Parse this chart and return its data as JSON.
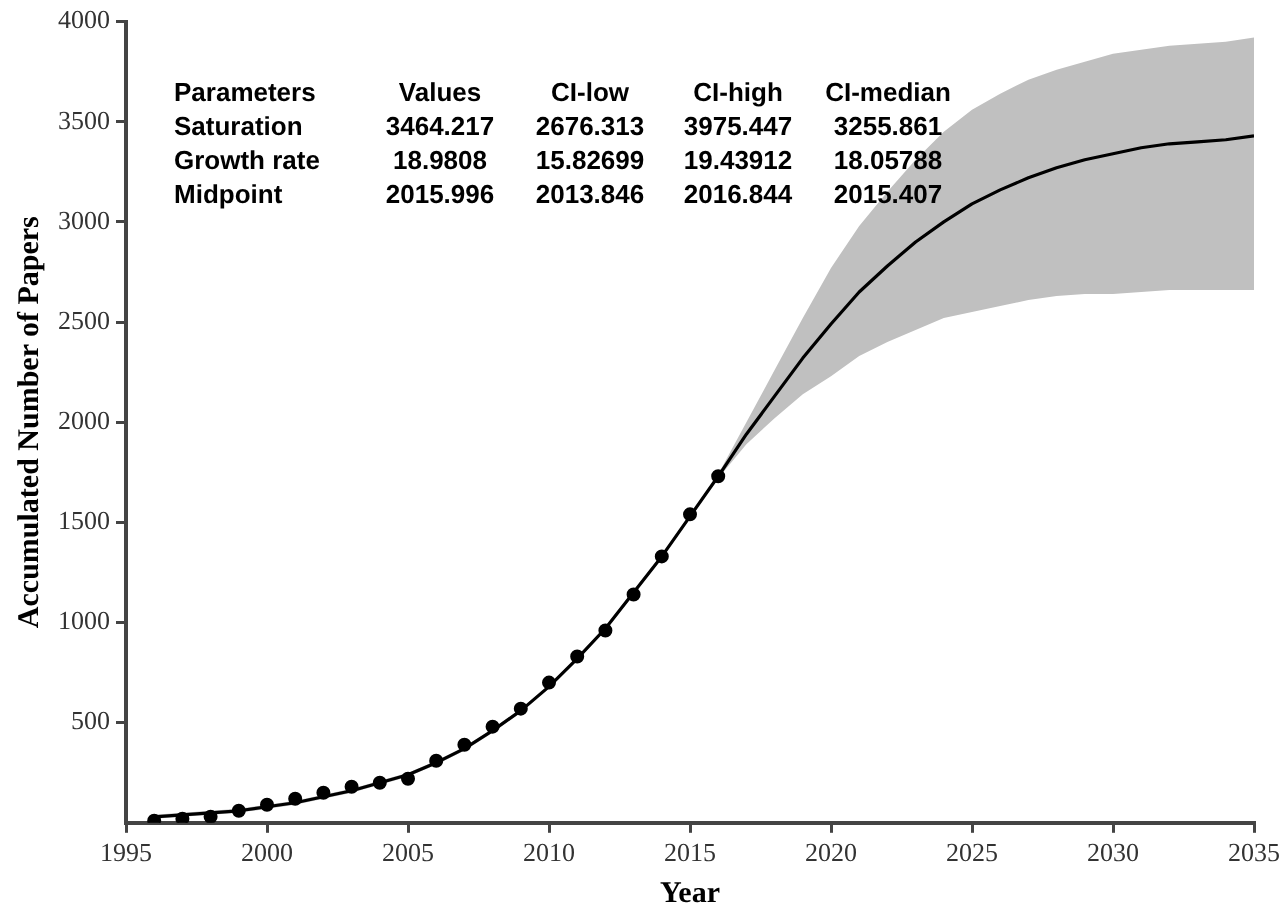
{
  "chart_data": {
    "type": "line",
    "xlabel": "Year",
    "ylabel": "Accumulated Number of Papers",
    "xlim": [
      1995,
      2035
    ],
    "xticks": [
      1995,
      2000,
      2005,
      2010,
      2015,
      2020,
      2025,
      2030,
      2035
    ],
    "ylim": [
      0,
      4000
    ],
    "yticks": [
      500,
      1000,
      1500,
      2000,
      2500,
      3000,
      3500,
      4000
    ],
    "grid": false,
    "legend": false,
    "annotations": [
      "Parameters",
      "Values",
      "CI-low",
      "CI-high",
      "CI-median",
      "Saturation",
      "3464.217",
      "2676.313",
      "3975.447",
      "3255.861",
      "Growth rate",
      "18.9808",
      "15.82699",
      "19.43912",
      "18.05788",
      "Midpoint",
      "2015.996",
      "2013.846",
      "2016.844",
      "2015.407"
    ],
    "series": [
      {
        "color": "#000000",
        "marker": "none",
        "line_style": "solid",
        "x": [
          1996,
          1997,
          1998,
          1999,
          2000,
          2001,
          2002,
          2003,
          2004,
          2005,
          2006,
          2007,
          2008,
          2009,
          2010,
          2011,
          2012,
          2013,
          2014,
          2015,
          2016,
          2017,
          2018,
          2019,
          2020,
          2021,
          2022,
          2023,
          2024,
          2025,
          2026,
          2027,
          2028,
          2029,
          2030,
          2031,
          2032,
          2033,
          2034,
          2035
        ],
        "values": [
          30,
          40,
          50,
          60,
          80,
          100,
          130,
          160,
          200,
          240,
          300,
          370,
          460,
          560,
          680,
          820,
          970,
          1150,
          1330,
          1530,
          1730,
          1940,
          2130,
          2320,
          2490,
          2650,
          2780,
          2900,
          3000,
          3090,
          3160,
          3220,
          3270,
          3310,
          3340,
          3370,
          3390,
          3400,
          3410,
          3430
        ],
        "lower": [
          20,
          30,
          40,
          50,
          70,
          90,
          120,
          150,
          190,
          230,
          290,
          360,
          450,
          550,
          670,
          810,
          960,
          1140,
          1320,
          1520,
          1720,
          1890,
          2020,
          2140,
          2230,
          2330,
          2400,
          2460,
          2520,
          2550,
          2580,
          2610,
          2630,
          2640,
          2640,
          2650,
          2660,
          2660,
          2660,
          2660
        ],
        "upper": [
          40,
          50,
          60,
          70,
          90,
          110,
          140,
          170,
          210,
          250,
          310,
          380,
          470,
          570,
          690,
          830,
          980,
          1160,
          1340,
          1540,
          1740,
          2000,
          2260,
          2520,
          2770,
          2980,
          3150,
          3310,
          3450,
          3560,
          3640,
          3710,
          3760,
          3800,
          3840,
          3860,
          3880,
          3890,
          3900,
          3920
        ]
      },
      {
        "type": "scatter",
        "color": "#000000",
        "marker": "circle",
        "x": [
          1996,
          1997,
          1998,
          1999,
          2000,
          2001,
          2002,
          2003,
          2004,
          2005,
          2006,
          2007,
          2008,
          2009,
          2010,
          2011,
          2012,
          2013,
          2014,
          2015,
          2016
        ],
        "values": [
          10,
          20,
          30,
          60,
          90,
          120,
          150,
          180,
          200,
          220,
          310,
          390,
          480,
          570,
          700,
          830,
          960,
          1140,
          1330,
          1540,
          1730
        ]
      }
    ]
  }
}
